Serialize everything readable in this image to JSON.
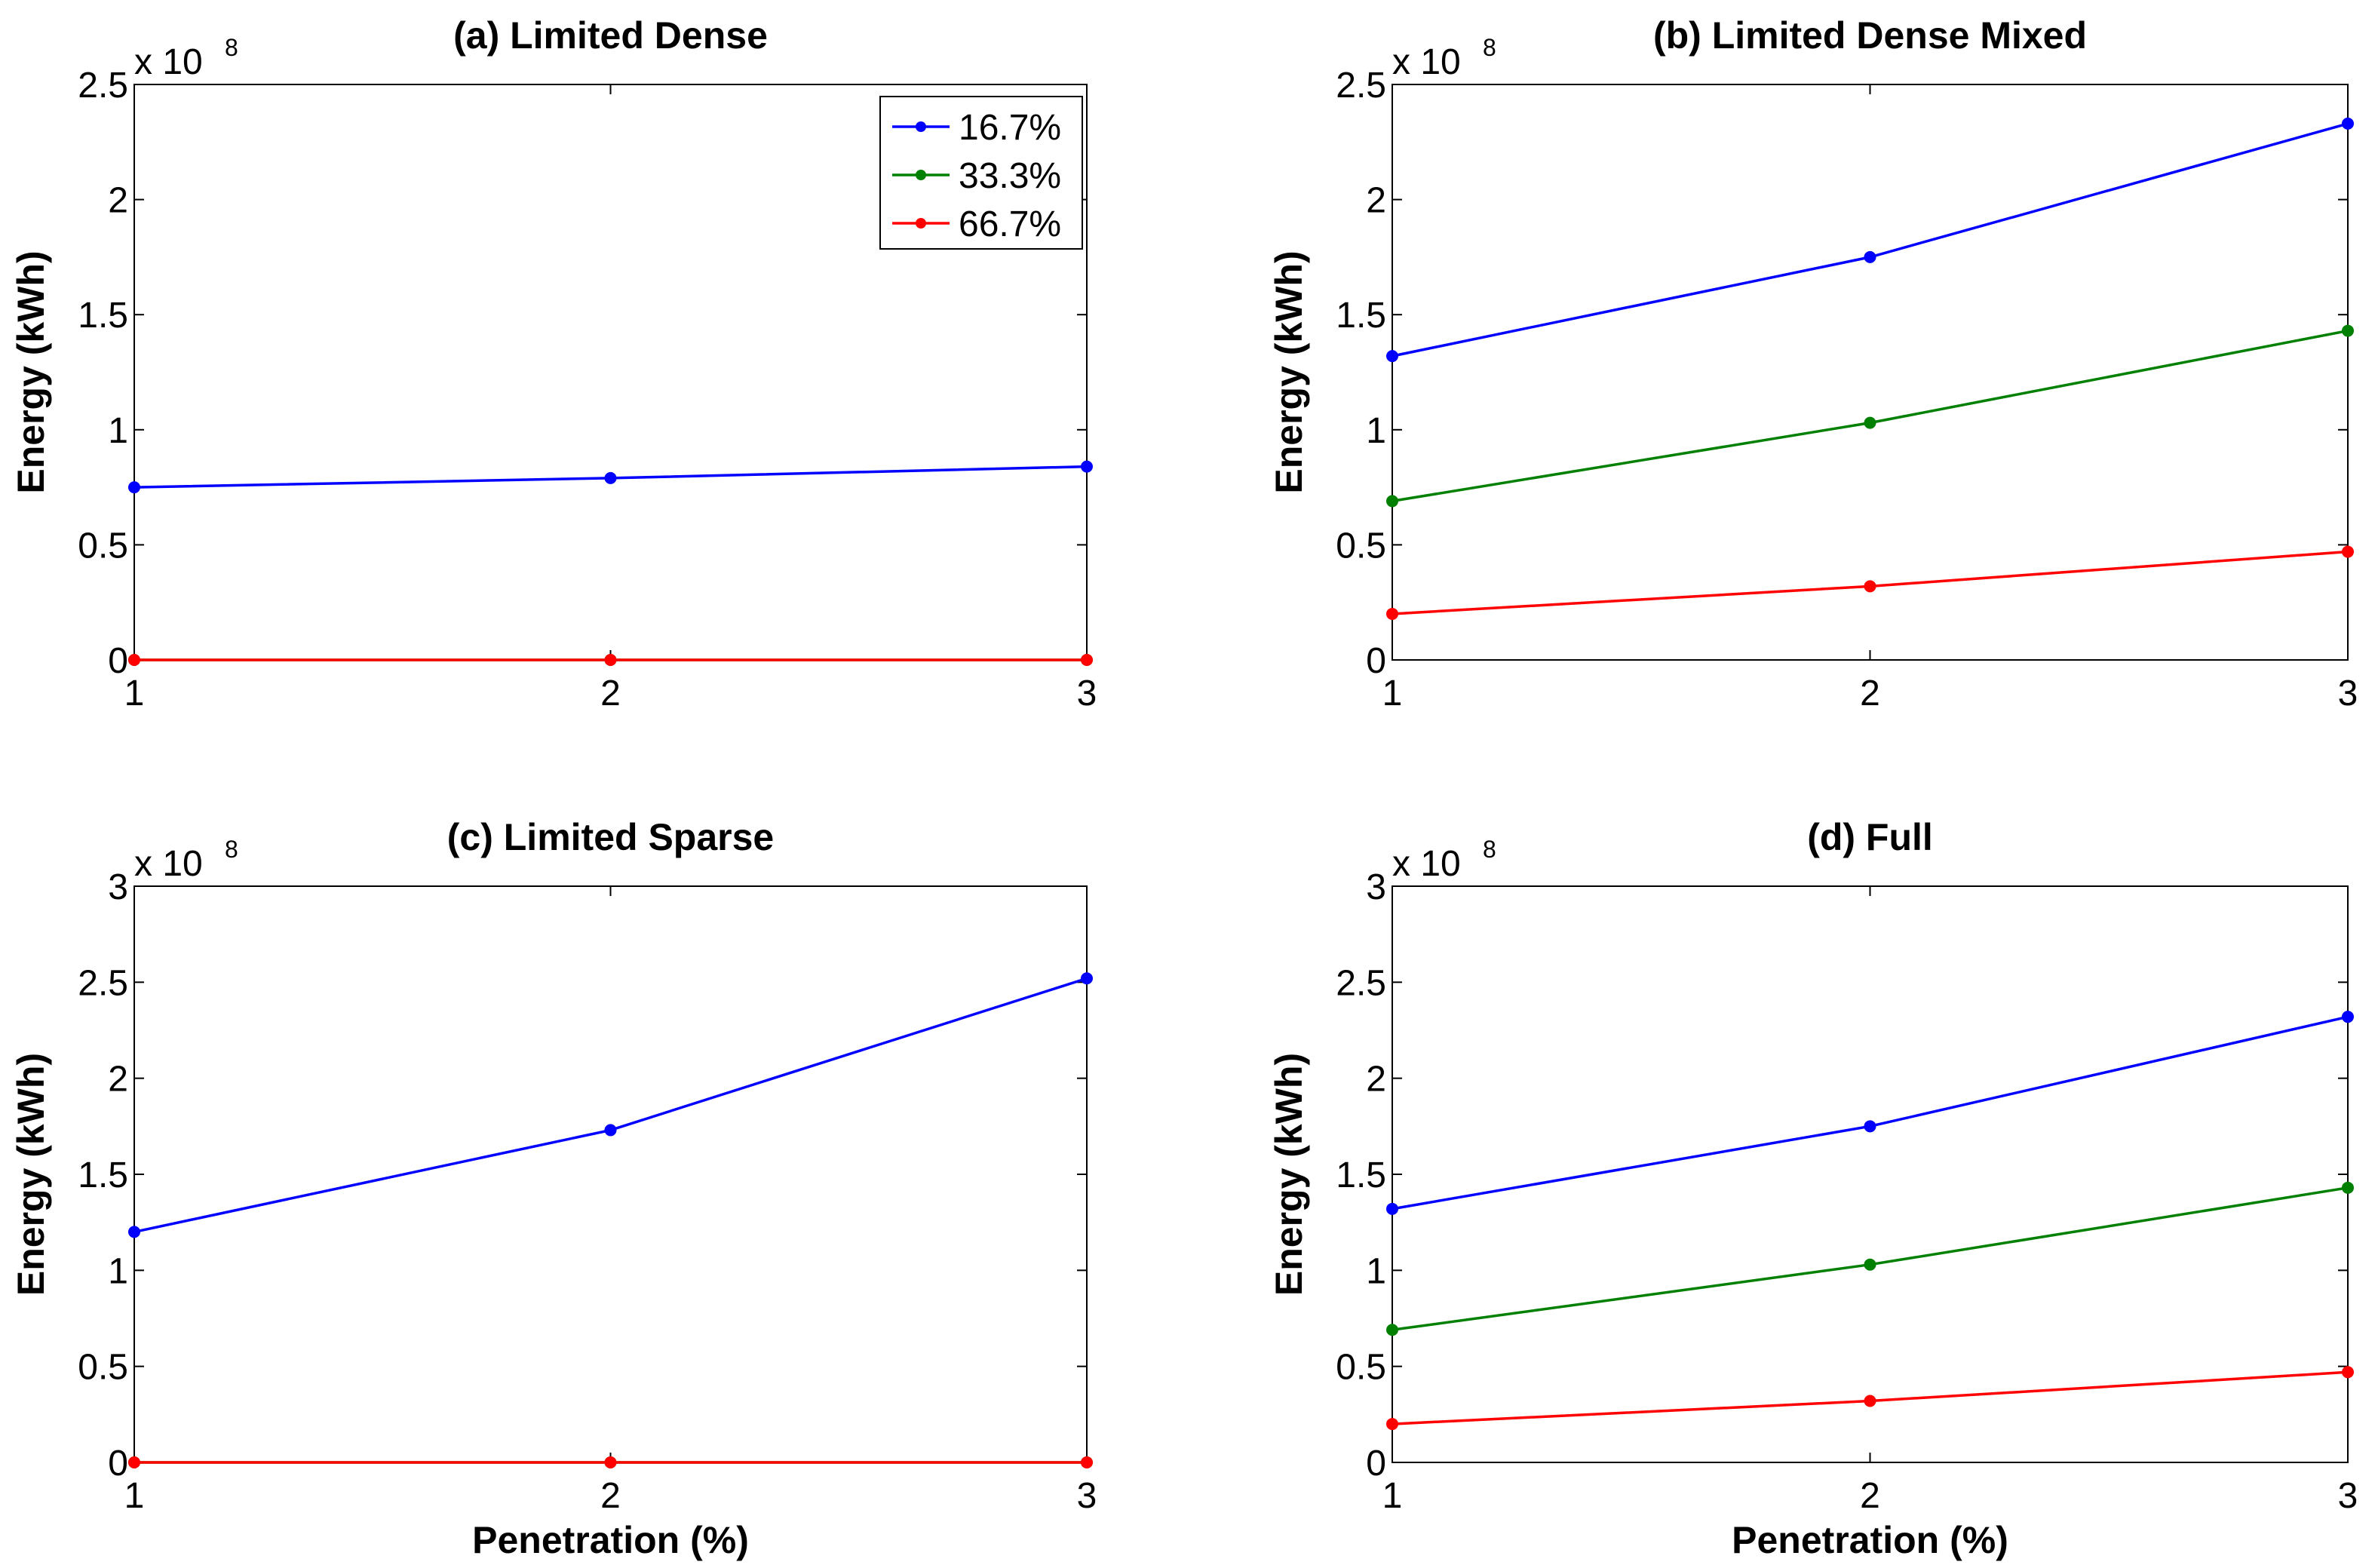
{
  "colors": {
    "16.7%": "#0000ff",
    "33.3%": "#008000",
    "66.7%": "#ff0000",
    "axis": "#000000"
  },
  "legend": [
    "16.7%",
    "33.3%",
    "66.7%"
  ],
  "chart_data": [
    {
      "type": "line",
      "title": "(a) Limited Dense",
      "xlabel": "",
      "ylabel": "Energy (kWh)",
      "x": [
        1,
        2,
        3
      ],
      "xticks": [
        "1",
        "2",
        "3"
      ],
      "xlim": [
        1,
        3
      ],
      "ylim": [
        0,
        2.5
      ],
      "yticks": [
        "0",
        "0.5",
        "1",
        "1.5",
        "2",
        "2.5"
      ],
      "multiplier": {
        "base": "x 10",
        "exponent": "8"
      },
      "show_legend": true,
      "legend_position": "top-right",
      "series": [
        {
          "name": "16.7%",
          "values": [
            0.75,
            0.79,
            0.84
          ]
        },
        {
          "name": "33.3%",
          "values": [
            0,
            0,
            0
          ]
        },
        {
          "name": "66.7%",
          "values": [
            0,
            0,
            0
          ]
        }
      ]
    },
    {
      "type": "line",
      "title": "(b) Limited Dense Mixed",
      "xlabel": "",
      "ylabel": "Energy (kWh)",
      "x": [
        1,
        2,
        3
      ],
      "xticks": [
        "1",
        "2",
        "3"
      ],
      "xlim": [
        1,
        3
      ],
      "ylim": [
        0,
        2.5
      ],
      "yticks": [
        "0",
        "0.5",
        "1",
        "1.5",
        "2",
        "2.5"
      ],
      "multiplier": {
        "base": "x 10",
        "exponent": "8"
      },
      "show_legend": false,
      "series": [
        {
          "name": "16.7%",
          "values": [
            1.32,
            1.75,
            2.33
          ]
        },
        {
          "name": "33.3%",
          "values": [
            0.69,
            1.03,
            1.43
          ]
        },
        {
          "name": "66.7%",
          "values": [
            0.2,
            0.32,
            0.47
          ]
        }
      ]
    },
    {
      "type": "line",
      "title": "(c) Limited Sparse",
      "xlabel": "Penetration (%)",
      "ylabel": "Energy (kWh)",
      "x": [
        1,
        2,
        3
      ],
      "xticks": [
        "1",
        "2",
        "3"
      ],
      "xlim": [
        1,
        3
      ],
      "ylim": [
        0,
        3
      ],
      "yticks": [
        "0",
        "0.5",
        "1",
        "1.5",
        "2",
        "2.5",
        "3"
      ],
      "multiplier": {
        "base": "x 10",
        "exponent": "8"
      },
      "show_legend": false,
      "series": [
        {
          "name": "16.7%",
          "values": [
            1.2,
            1.73,
            2.52
          ]
        },
        {
          "name": "33.3%",
          "values": [
            0,
            0,
            0
          ]
        },
        {
          "name": "66.7%",
          "values": [
            0,
            0,
            0
          ]
        }
      ]
    },
    {
      "type": "line",
      "title": "(d) Full",
      "xlabel": "Penetration (%)",
      "ylabel": "Energy (kWh)",
      "x": [
        1,
        2,
        3
      ],
      "xticks": [
        "1",
        "2",
        "3"
      ],
      "xlim": [
        1,
        3
      ],
      "ylim": [
        0,
        3
      ],
      "yticks": [
        "0",
        "0.5",
        "1",
        "1.5",
        "2",
        "2.5",
        "3"
      ],
      "multiplier": {
        "base": "x 10",
        "exponent": "8"
      },
      "show_legend": false,
      "series": [
        {
          "name": "16.7%",
          "values": [
            1.32,
            1.75,
            2.32
          ]
        },
        {
          "name": "33.3%",
          "values": [
            0.69,
            1.03,
            1.43
          ]
        },
        {
          "name": "66.7%",
          "values": [
            0.2,
            0.32,
            0.47
          ]
        }
      ]
    }
  ]
}
